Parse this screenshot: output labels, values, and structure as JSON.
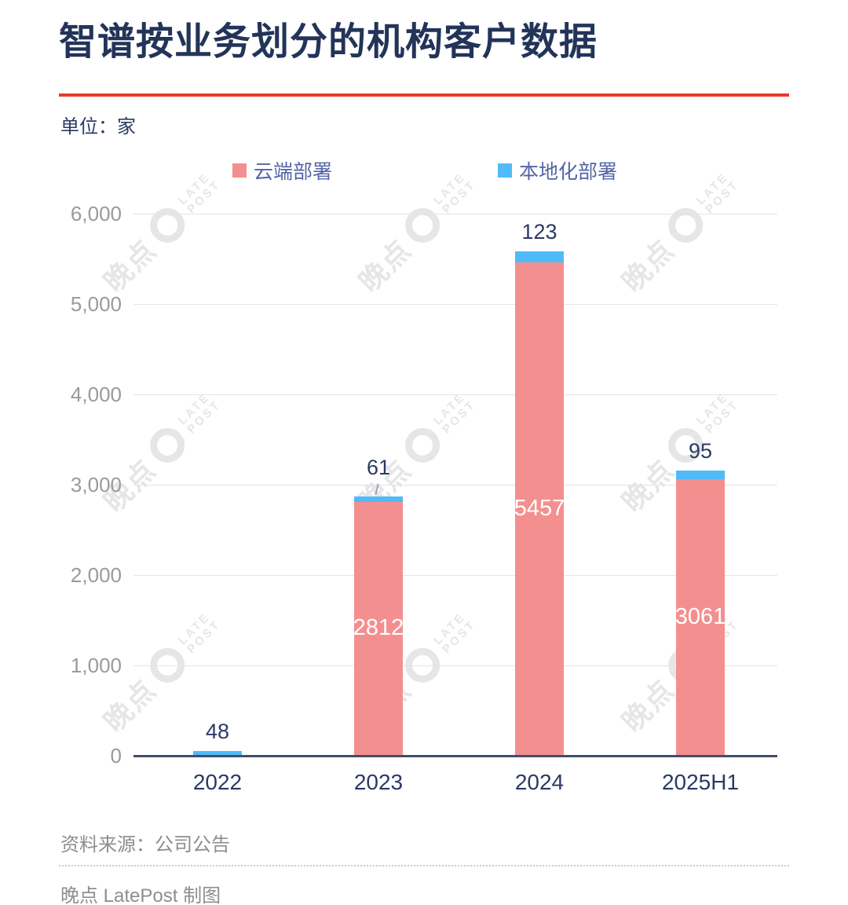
{
  "header": {
    "title": "智谱按业务划分的机构客户数据",
    "unit_label": "单位：家"
  },
  "legend": {
    "items": [
      {
        "label": "云端部署",
        "color": "#f48f8f"
      },
      {
        "label": "本地化部署",
        "color": "#4fbbf8"
      }
    ]
  },
  "chart_data": {
    "type": "bar",
    "stacked": true,
    "title": "智谱按业务划分的机构客户数据",
    "unit": "家",
    "categories": [
      "2022",
      "2023",
      "2024",
      "2025H1"
    ],
    "series": [
      {
        "name": "云端部署",
        "color": "#f48f8f",
        "values": [
          0,
          2812,
          5457,
          3061
        ]
      },
      {
        "name": "本地化部署",
        "color": "#4fbbf8",
        "values": [
          48,
          61,
          123,
          95
        ]
      }
    ],
    "top_labels": [
      "48",
      "61",
      "123",
      "95"
    ],
    "inner_labels": [
      "",
      "2812",
      "5457",
      "3061"
    ],
    "leader_lines": [
      false,
      true,
      false,
      false
    ],
    "ylim": [
      0,
      6000
    ],
    "yticks": [
      0,
      1000,
      2000,
      3000,
      4000,
      5000,
      6000
    ],
    "ytick_labels": [
      "0",
      "1,000",
      "2,000",
      "3,000",
      "4,000",
      "5,000",
      "6,000"
    ],
    "grid": true,
    "legend_position": "top"
  },
  "watermark": {
    "cn": "晚点",
    "en_line1": "LATE",
    "en_line2": "POST"
  },
  "footer": {
    "source": "资料来源：公司公告",
    "credit": "晚点 LatePost 制图"
  },
  "colors": {
    "accent_red": "#e8392b",
    "title_navy": "#233459",
    "label_navy": "#2b3a64",
    "legend_text": "#5565a6",
    "axis_gray": "#9a9a9a",
    "footer_gray": "#8e8e8e",
    "gridline": "#e4e4e4",
    "baseline": "#414e6b",
    "cloud_pink": "#f48f8f",
    "local_blue": "#4fbbf8",
    "watermark_gray": "#e6e6e8"
  }
}
